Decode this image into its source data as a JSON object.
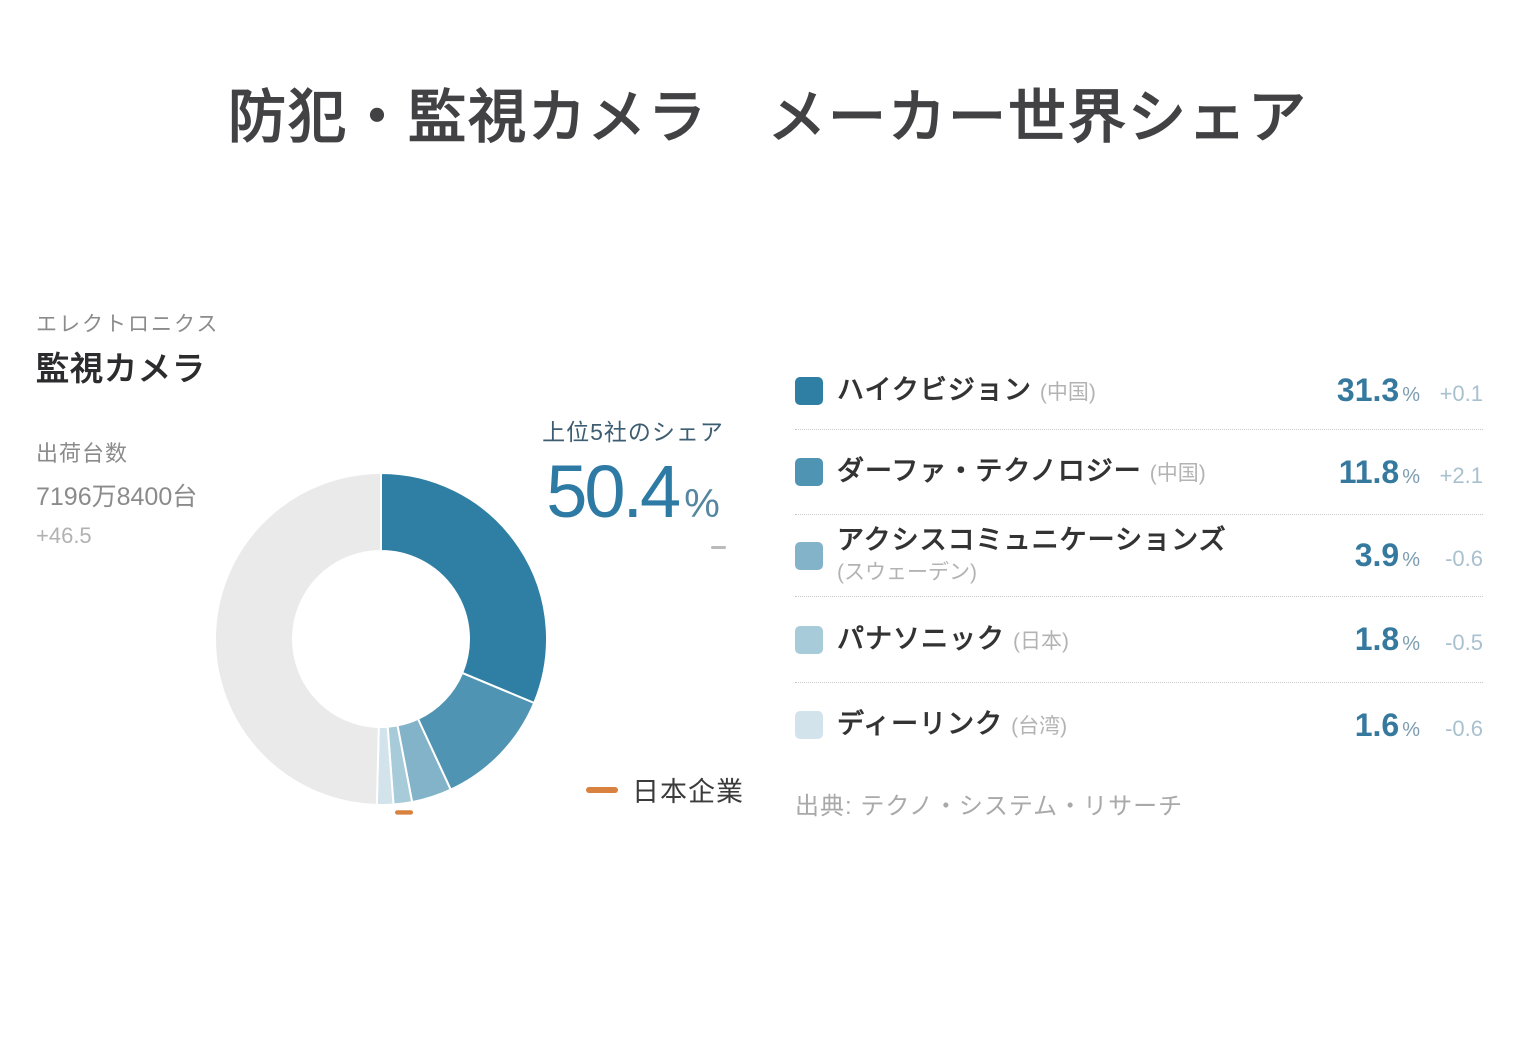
{
  "title": "防犯・監視カメラ　メーカー世界シェア",
  "info": {
    "category": "エレクトロニクス",
    "product": "監視カメラ",
    "shipments_label": "出荷台数",
    "shipments_value": "7196万8400台",
    "shipments_change": "+46.5"
  },
  "share_callout": {
    "label": "上位5社のシェア",
    "value": "50.4",
    "unit": "%"
  },
  "legend": {
    "japan_label": "日本企業",
    "dash_color": "#d9813f"
  },
  "source": "出典: テクノ・システム・リサーチ",
  "chart_data": {
    "type": "pie",
    "donut": true,
    "title": "上位5社のシェア 50.4%",
    "unit": "%",
    "start_angle_deg": 0,
    "direction": "clockwise",
    "top5_share": 50.4,
    "japan_marker_slice_index": 3,
    "slices": [
      {
        "label": "ハイクビジョン",
        "country": "(中国)",
        "value": 31.3,
        "change": "+0.1",
        "color": "#2e7fa3"
      },
      {
        "label": "ダーファ・テクノロジー",
        "country": "(中国)",
        "value": 11.8,
        "change": "+2.1",
        "color": "#4f94b3"
      },
      {
        "label": "アクシスコミュニケーションズ",
        "country": "(スウェーデン)",
        "value": 3.9,
        "change": "-0.6",
        "color": "#82b3c9"
      },
      {
        "label": "パナソニック",
        "country": "(日本)",
        "value": 1.8,
        "change": "-0.5",
        "color": "#a8cbda"
      },
      {
        "label": "ディーリンク",
        "country": "(台湾)",
        "value": 1.6,
        "change": "-0.6",
        "color": "#d3e3eb"
      },
      {
        "label": "",
        "value": 49.6,
        "change": "",
        "color": "#eaeaea"
      }
    ]
  }
}
